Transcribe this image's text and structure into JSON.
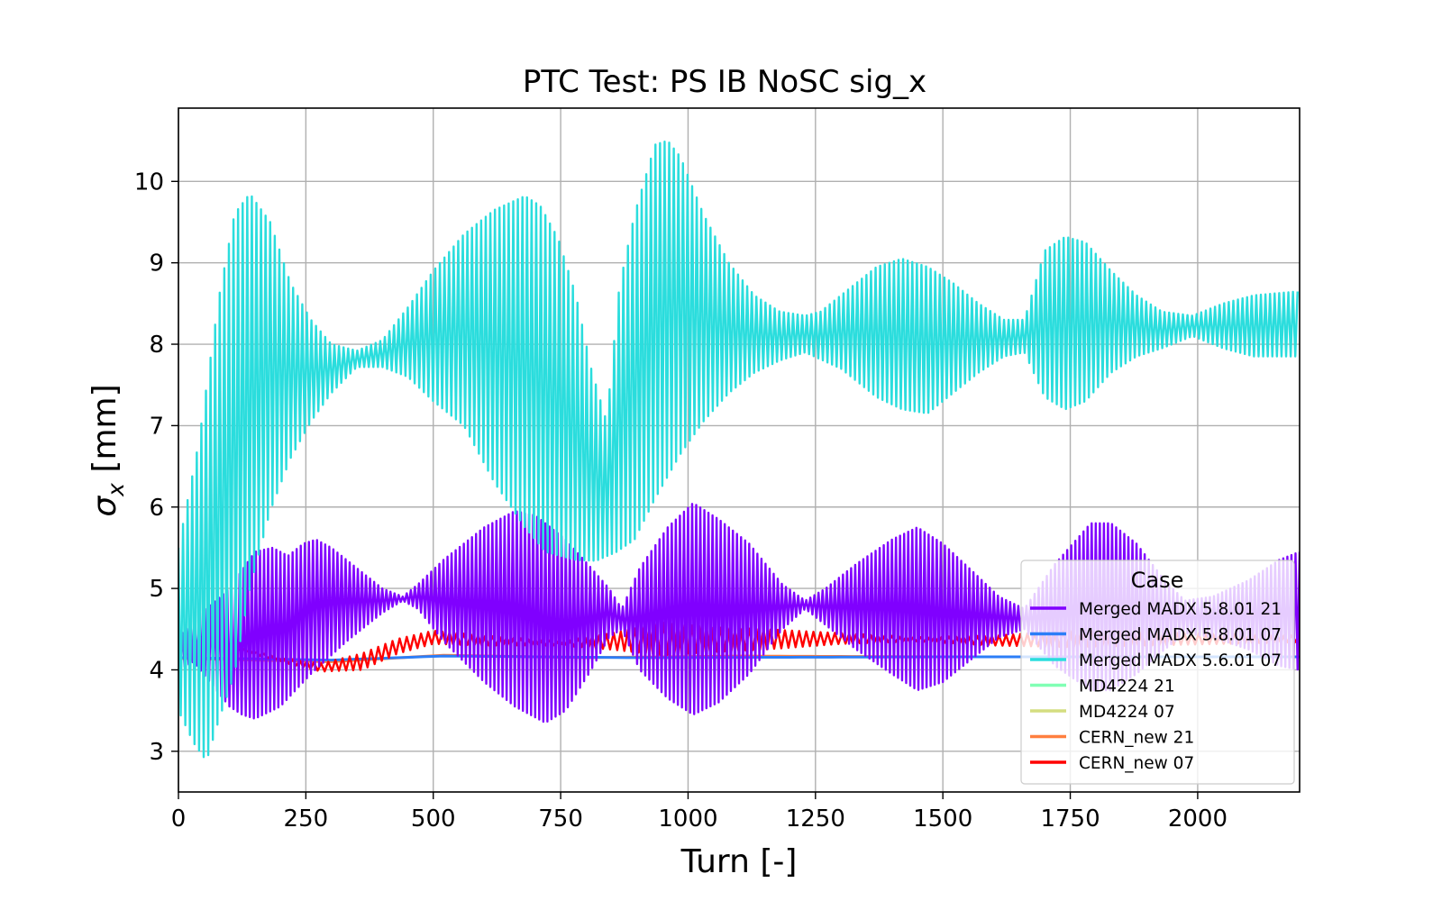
{
  "chart_data": {
    "type": "line",
    "title": "PTC Test: PS IB NoSC sig_x",
    "xlabel": "Turn [-]",
    "ylabel_symbol": "σ",
    "ylabel_subscript": "x",
    "ylabel_unit": " [mm]",
    "xlim": [
      0,
      2200
    ],
    "ylim": [
      2.5,
      10.9
    ],
    "xticks": [
      0,
      250,
      500,
      750,
      1000,
      1250,
      1500,
      1750,
      2000
    ],
    "yticks": [
      3,
      4,
      5,
      6,
      7,
      8,
      9,
      10
    ],
    "grid": true,
    "legend": {
      "title": "Case",
      "placement": "lower-right"
    },
    "series": [
      {
        "name": "Merged MADX 5.8.01 21",
        "color": "#8000ff",
        "oscillation_period_turns": 8,
        "envelope_upper": [
          [
            0,
            4.4
          ],
          [
            30,
            4.6
          ],
          [
            100,
            5.0
          ],
          [
            150,
            5.45
          ],
          [
            185,
            5.5
          ],
          [
            215,
            5.4
          ],
          [
            245,
            5.55
          ],
          [
            270,
            5.6
          ],
          [
            300,
            5.5
          ],
          [
            350,
            5.25
          ],
          [
            400,
            5.0
          ],
          [
            440,
            4.9
          ],
          [
            470,
            5.05
          ],
          [
            520,
            5.35
          ],
          [
            600,
            5.75
          ],
          [
            660,
            5.95
          ],
          [
            700,
            5.9
          ],
          [
            760,
            5.6
          ],
          [
            810,
            5.25
          ],
          [
            845,
            5.0
          ],
          [
            870,
            4.75
          ],
          [
            905,
            5.25
          ],
          [
            960,
            5.75
          ],
          [
            1010,
            6.05
          ],
          [
            1060,
            5.85
          ],
          [
            1120,
            5.55
          ],
          [
            1185,
            5.05
          ],
          [
            1230,
            4.85
          ],
          [
            1270,
            5.0
          ],
          [
            1330,
            5.3
          ],
          [
            1400,
            5.6
          ],
          [
            1450,
            5.75
          ],
          [
            1500,
            5.55
          ],
          [
            1560,
            5.2
          ],
          [
            1610,
            4.9
          ],
          [
            1660,
            4.75
          ],
          [
            1720,
            5.3
          ],
          [
            1790,
            5.8
          ],
          [
            1830,
            5.8
          ],
          [
            1880,
            5.55
          ],
          [
            1935,
            5.1
          ],
          [
            1975,
            4.85
          ],
          [
            2030,
            4.9
          ],
          [
            2100,
            5.1
          ],
          [
            2160,
            5.35
          ],
          [
            2200,
            5.45
          ]
        ],
        "envelope_lower": [
          [
            0,
            4.0
          ],
          [
            30,
            4.1
          ],
          [
            100,
            3.55
          ],
          [
            125,
            3.45
          ],
          [
            150,
            3.4
          ],
          [
            200,
            3.55
          ],
          [
            260,
            3.95
          ],
          [
            330,
            4.35
          ],
          [
            400,
            4.7
          ],
          [
            440,
            4.85
          ],
          [
            470,
            4.75
          ],
          [
            520,
            4.35
          ],
          [
            600,
            3.85
          ],
          [
            660,
            3.55
          ],
          [
            720,
            3.35
          ],
          [
            760,
            3.5
          ],
          [
            810,
            4.0
          ],
          [
            845,
            4.4
          ],
          [
            870,
            4.5
          ],
          [
            905,
            4.0
          ],
          [
            960,
            3.65
          ],
          [
            1010,
            3.45
          ],
          [
            1060,
            3.6
          ],
          [
            1120,
            3.95
          ],
          [
            1185,
            4.5
          ],
          [
            1230,
            4.75
          ],
          [
            1270,
            4.55
          ],
          [
            1330,
            4.25
          ],
          [
            1400,
            3.95
          ],
          [
            1450,
            3.75
          ],
          [
            1500,
            3.85
          ],
          [
            1560,
            4.15
          ],
          [
            1610,
            4.4
          ],
          [
            1660,
            4.5
          ],
          [
            1720,
            4.05
          ],
          [
            1790,
            3.75
          ],
          [
            1830,
            3.75
          ],
          [
            1880,
            3.95
          ],
          [
            1935,
            4.25
          ],
          [
            1975,
            4.45
          ],
          [
            2030,
            4.4
          ],
          [
            2100,
            4.25
          ],
          [
            2160,
            4.05
          ],
          [
            2200,
            4.0
          ]
        ]
      },
      {
        "name": "Merged MADX 5.8.01 07",
        "color": "#2c7ef7",
        "oscillation_period_turns": 0,
        "envelope_upper": [
          [
            0,
            4.15
          ],
          [
            300,
            4.12
          ],
          [
            520,
            4.17
          ],
          [
            900,
            4.15
          ],
          [
            1500,
            4.16
          ],
          [
            2200,
            4.16
          ]
        ],
        "envelope_lower": [
          [
            0,
            4.15
          ],
          [
            300,
            4.12
          ],
          [
            520,
            4.17
          ],
          [
            900,
            4.15
          ],
          [
            1500,
            4.16
          ],
          [
            2200,
            4.16
          ]
        ]
      },
      {
        "name": "Merged MADX 5.6.01 07",
        "color": "#2adddd",
        "oscillation_period_turns": 9,
        "envelope_upper": [
          [
            0,
            5.5
          ],
          [
            40,
            6.8
          ],
          [
            80,
            8.6
          ],
          [
            110,
            9.6
          ],
          [
            140,
            9.85
          ],
          [
            180,
            9.5
          ],
          [
            220,
            8.75
          ],
          [
            260,
            8.3
          ],
          [
            300,
            8.0
          ],
          [
            350,
            7.92
          ],
          [
            400,
            8.05
          ],
          [
            450,
            8.45
          ],
          [
            500,
            8.9
          ],
          [
            560,
            9.35
          ],
          [
            620,
            9.65
          ],
          [
            680,
            9.82
          ],
          [
            710,
            9.7
          ],
          [
            745,
            9.3
          ],
          [
            780,
            8.6
          ],
          [
            810,
            7.7
          ],
          [
            840,
            7.05
          ],
          [
            865,
            8.7
          ],
          [
            895,
            9.6
          ],
          [
            935,
            10.45
          ],
          [
            960,
            10.5
          ],
          [
            985,
            10.3
          ],
          [
            1030,
            9.6
          ],
          [
            1080,
            9.0
          ],
          [
            1130,
            8.6
          ],
          [
            1180,
            8.4
          ],
          [
            1230,
            8.35
          ],
          [
            1260,
            8.4
          ],
          [
            1300,
            8.6
          ],
          [
            1370,
            8.95
          ],
          [
            1420,
            9.05
          ],
          [
            1470,
            8.95
          ],
          [
            1520,
            8.75
          ],
          [
            1570,
            8.5
          ],
          [
            1620,
            8.3
          ],
          [
            1660,
            8.3
          ],
          [
            1700,
            9.15
          ],
          [
            1740,
            9.32
          ],
          [
            1780,
            9.25
          ],
          [
            1830,
            8.9
          ],
          [
            1880,
            8.6
          ],
          [
            1930,
            8.4
          ],
          [
            1990,
            8.35
          ],
          [
            2050,
            8.5
          ],
          [
            2110,
            8.6
          ],
          [
            2200,
            8.65
          ]
        ],
        "envelope_lower": [
          [
            0,
            3.5
          ],
          [
            30,
            3.1
          ],
          [
            55,
            2.88
          ],
          [
            80,
            3.4
          ],
          [
            110,
            3.95
          ],
          [
            140,
            5.0
          ],
          [
            180,
            5.95
          ],
          [
            220,
            6.6
          ],
          [
            260,
            7.05
          ],
          [
            300,
            7.4
          ],
          [
            350,
            7.72
          ],
          [
            400,
            7.72
          ],
          [
            450,
            7.6
          ],
          [
            500,
            7.3
          ],
          [
            560,
            7.0
          ],
          [
            620,
            6.3
          ],
          [
            680,
            5.75
          ],
          [
            720,
            5.45
          ],
          [
            780,
            5.35
          ],
          [
            820,
            5.34
          ],
          [
            860,
            5.45
          ],
          [
            895,
            5.6
          ],
          [
            935,
            6.1
          ],
          [
            985,
            6.65
          ],
          [
            1030,
            7.05
          ],
          [
            1080,
            7.4
          ],
          [
            1130,
            7.65
          ],
          [
            1180,
            7.8
          ],
          [
            1230,
            7.9
          ],
          [
            1300,
            7.7
          ],
          [
            1370,
            7.35
          ],
          [
            1420,
            7.2
          ],
          [
            1470,
            7.15
          ],
          [
            1520,
            7.4
          ],
          [
            1570,
            7.65
          ],
          [
            1620,
            7.85
          ],
          [
            1660,
            7.9
          ],
          [
            1700,
            7.35
          ],
          [
            1740,
            7.2
          ],
          [
            1780,
            7.3
          ],
          [
            1830,
            7.65
          ],
          [
            1880,
            7.85
          ],
          [
            1930,
            7.95
          ],
          [
            1990,
            8.1
          ],
          [
            2050,
            7.95
          ],
          [
            2110,
            7.85
          ],
          [
            2200,
            7.85
          ]
        ]
      },
      {
        "name": "MD4224 21",
        "color": "#80ffb4",
        "oscillation_period_turns": 0,
        "envelope_upper": [],
        "envelope_lower": []
      },
      {
        "name": "MD4224 07",
        "color": "#d4dd80",
        "oscillation_period_turns": 0,
        "envelope_upper": [],
        "envelope_lower": []
      },
      {
        "name": "CERN_new 21",
        "color": "#ff7f3f",
        "oscillation_period_turns": 0,
        "envelope_upper": [
          [
            0,
            4.14
          ],
          [
            150,
            4.12
          ],
          [
            300,
            4.1
          ],
          [
            520,
            4.18
          ],
          [
            800,
            4.15
          ],
          [
            1100,
            4.17
          ],
          [
            1500,
            4.16
          ],
          [
            2200,
            4.16
          ]
        ],
        "envelope_lower": [
          [
            0,
            4.14
          ],
          [
            150,
            4.12
          ],
          [
            300,
            4.1
          ],
          [
            520,
            4.18
          ],
          [
            800,
            4.15
          ],
          [
            1100,
            4.17
          ],
          [
            1500,
            4.16
          ],
          [
            2200,
            4.16
          ]
        ]
      },
      {
        "name": "CERN_new 07",
        "color": "#ff0000",
        "oscillation_period_turns": 14,
        "envelope_upper": [
          [
            0,
            4.38
          ],
          [
            100,
            4.3
          ],
          [
            200,
            4.15
          ],
          [
            280,
            4.08
          ],
          [
            360,
            4.2
          ],
          [
            430,
            4.38
          ],
          [
            500,
            4.48
          ],
          [
            600,
            4.42
          ],
          [
            750,
            4.35
          ],
          [
            850,
            4.45
          ],
          [
            950,
            4.58
          ],
          [
            1050,
            4.52
          ],
          [
            1150,
            4.5
          ],
          [
            1300,
            4.45
          ],
          [
            1450,
            4.4
          ],
          [
            1600,
            4.42
          ],
          [
            1750,
            4.48
          ],
          [
            1900,
            4.46
          ],
          [
            2050,
            4.44
          ],
          [
            2200,
            4.42
          ]
        ],
        "envelope_lower": [
          [
            0,
            4.38
          ],
          [
            100,
            4.28
          ],
          [
            200,
            4.1
          ],
          [
            280,
            3.98
          ],
          [
            360,
            4.0
          ],
          [
            430,
            4.2
          ],
          [
            500,
            4.32
          ],
          [
            600,
            4.3
          ],
          [
            750,
            4.3
          ],
          [
            850,
            4.25
          ],
          [
            950,
            4.18
          ],
          [
            1050,
            4.22
          ],
          [
            1150,
            4.25
          ],
          [
            1300,
            4.32
          ],
          [
            1450,
            4.35
          ],
          [
            1600,
            4.3
          ],
          [
            1750,
            4.28
          ],
          [
            1900,
            4.3
          ],
          [
            2050,
            4.32
          ],
          [
            2200,
            4.34
          ]
        ]
      }
    ]
  }
}
